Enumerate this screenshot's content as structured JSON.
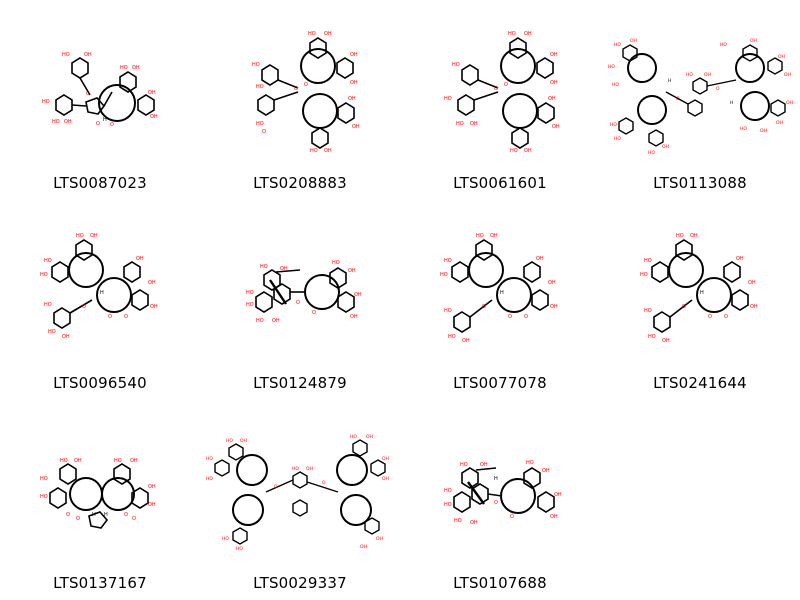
{
  "grid": {
    "columns": 4,
    "molecules": [
      {
        "id": "LTS0087023"
      },
      {
        "id": "LTS0208883"
      },
      {
        "id": "LTS0061601"
      },
      {
        "id": "LTS0113088"
      },
      {
        "id": "LTS0096540"
      },
      {
        "id": "LTS0124879"
      },
      {
        "id": "LTS0077078"
      },
      {
        "id": "LTS0241644"
      },
      {
        "id": "LTS0137167"
      },
      {
        "id": "LTS0029337"
      },
      {
        "id": "LTS0107688"
      }
    ]
  },
  "atom_labels": {
    "hydroxyl": "HO",
    "hydroxyl_r": "OH",
    "oxygen": "O",
    "hydrogen": "H"
  },
  "colors": {
    "bond": "#000000",
    "heteroatom": "#ff0000",
    "background": "#ffffff"
  }
}
